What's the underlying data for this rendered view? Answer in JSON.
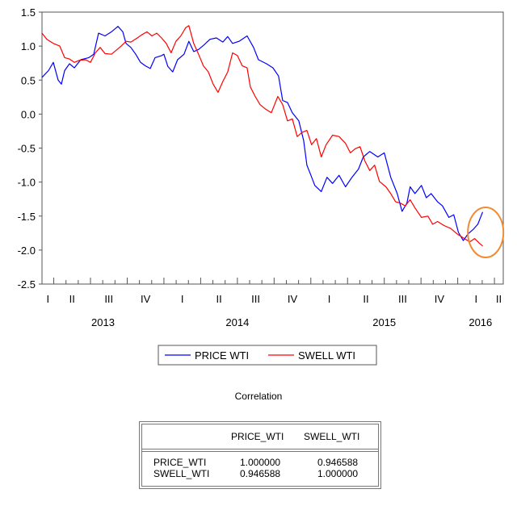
{
  "chart_data": {
    "type": "line",
    "title": "",
    "xlabel": "",
    "ylabel": "",
    "ylim": [
      -2.5,
      1.5
    ],
    "xlim": [
      2013.17,
      2016.31
    ],
    "yticks": [
      "1.5",
      "1.0",
      "0.5",
      "0.0",
      "-0.5",
      "-1.0",
      "-1.5",
      "-2.0",
      "-2.5"
    ],
    "ytick_values": [
      1.5,
      1.0,
      0.5,
      0.0,
      -0.5,
      -1.0,
      -1.5,
      -2.0,
      -2.5
    ],
    "quarter_labels": [
      "I",
      "II",
      "III",
      "IV"
    ],
    "year_labels": [
      "2013",
      "2014",
      "2015",
      "2016"
    ],
    "grid": false,
    "legend_placement": "bottom",
    "series": [
      {
        "name": "PRICE WTI",
        "color": "#0000ff",
        "points": [
          [
            2013.17,
            0.54
          ],
          [
            2013.214,
            0.64
          ],
          [
            2013.247,
            0.76
          ],
          [
            2013.28,
            0.5
          ],
          [
            2013.302,
            0.44
          ],
          [
            2013.324,
            0.64
          ],
          [
            2013.357,
            0.74
          ],
          [
            2013.39,
            0.68
          ],
          [
            2013.434,
            0.8
          ],
          [
            2013.489,
            0.83
          ],
          [
            2013.522,
            0.88
          ],
          [
            2013.555,
            1.19
          ],
          [
            2013.599,
            1.15
          ],
          [
            2013.643,
            1.21
          ],
          [
            2013.687,
            1.29
          ],
          [
            2013.72,
            1.21
          ],
          [
            2013.742,
            1.04
          ],
          [
            2013.775,
            0.98
          ],
          [
            2013.808,
            0.88
          ],
          [
            2013.841,
            0.76
          ],
          [
            2013.874,
            0.71
          ],
          [
            2013.907,
            0.67
          ],
          [
            2013.94,
            0.83
          ],
          [
            2013.984,
            0.86
          ],
          [
            2014.0,
            0.88
          ],
          [
            2014.027,
            0.7
          ],
          [
            2014.06,
            0.62
          ],
          [
            2014.093,
            0.8
          ],
          [
            2014.137,
            0.88
          ],
          [
            2014.17,
            1.07
          ],
          [
            2014.203,
            0.92
          ],
          [
            2014.236,
            0.95
          ],
          [
            2014.269,
            1.01
          ],
          [
            2014.313,
            1.1
          ],
          [
            2014.357,
            1.12
          ],
          [
            2014.401,
            1.06
          ],
          [
            2014.434,
            1.14
          ],
          [
            2014.467,
            1.04
          ],
          [
            2014.511,
            1.07
          ],
          [
            2014.566,
            1.15
          ],
          [
            2014.61,
            0.98
          ],
          [
            2014.643,
            0.8
          ],
          [
            2014.698,
            0.74
          ],
          [
            2014.742,
            0.68
          ],
          [
            2014.78,
            0.56
          ],
          [
            2014.808,
            0.2
          ],
          [
            2014.841,
            0.17
          ],
          [
            2014.874,
            0.02
          ],
          [
            2014.918,
            -0.1
          ],
          [
            2014.951,
            -0.39
          ],
          [
            2014.973,
            -0.75
          ],
          [
            2014.995,
            -0.87
          ],
          [
            2015.027,
            -1.05
          ],
          [
            2015.071,
            -1.14
          ],
          [
            2015.11,
            -0.93
          ],
          [
            2015.148,
            -1.02
          ],
          [
            2015.192,
            -0.9
          ],
          [
            2015.236,
            -1.07
          ],
          [
            2015.28,
            -0.93
          ],
          [
            2015.324,
            -0.81
          ],
          [
            2015.357,
            -0.63
          ],
          [
            2015.401,
            -0.55
          ],
          [
            2015.456,
            -0.63
          ],
          [
            2015.5,
            -0.57
          ],
          [
            2015.544,
            -0.93
          ],
          [
            2015.588,
            -1.17
          ],
          [
            2015.621,
            -1.43
          ],
          [
            2015.654,
            -1.31
          ],
          [
            2015.676,
            -1.07
          ],
          [
            2015.709,
            -1.17
          ],
          [
            2015.753,
            -1.05
          ],
          [
            2015.786,
            -1.23
          ],
          [
            2015.819,
            -1.17
          ],
          [
            2015.863,
            -1.29
          ],
          [
            2015.896,
            -1.35
          ],
          [
            2015.94,
            -1.52
          ],
          [
            2015.973,
            -1.48
          ],
          [
            2016.005,
            -1.74
          ],
          [
            2016.038,
            -1.86
          ],
          [
            2016.071,
            -1.76
          ],
          [
            2016.104,
            -1.7
          ],
          [
            2016.137,
            -1.62
          ],
          [
            2016.17,
            -1.44
          ]
        ]
      },
      {
        "name": "SWELL WTI",
        "color": "#ff0000",
        "points": [
          [
            2013.17,
            1.19
          ],
          [
            2013.203,
            1.1
          ],
          [
            2013.247,
            1.04
          ],
          [
            2013.291,
            1.0
          ],
          [
            2013.324,
            0.83
          ],
          [
            2013.357,
            0.81
          ],
          [
            2013.39,
            0.76
          ],
          [
            2013.423,
            0.79
          ],
          [
            2013.467,
            0.8
          ],
          [
            2013.5,
            0.76
          ],
          [
            2013.533,
            0.9
          ],
          [
            2013.566,
            0.98
          ],
          [
            2013.599,
            0.89
          ],
          [
            2013.643,
            0.88
          ],
          [
            2013.676,
            0.94
          ],
          [
            2013.709,
            1.0
          ],
          [
            2013.742,
            1.07
          ],
          [
            2013.775,
            1.06
          ],
          [
            2013.819,
            1.12
          ],
          [
            2013.852,
            1.17
          ],
          [
            2013.885,
            1.21
          ],
          [
            2013.918,
            1.15
          ],
          [
            2013.951,
            1.19
          ],
          [
            2013.984,
            1.12
          ],
          [
            2014.016,
            1.04
          ],
          [
            2014.049,
            0.9
          ],
          [
            2014.082,
            1.07
          ],
          [
            2014.115,
            1.15
          ],
          [
            2014.148,
            1.27
          ],
          [
            2014.17,
            1.3
          ],
          [
            2014.203,
            1.04
          ],
          [
            2014.236,
            0.88
          ],
          [
            2014.269,
            0.71
          ],
          [
            2014.302,
            0.62
          ],
          [
            2014.335,
            0.44
          ],
          [
            2014.368,
            0.32
          ],
          [
            2014.401,
            0.48
          ],
          [
            2014.434,
            0.62
          ],
          [
            2014.467,
            0.9
          ],
          [
            2014.5,
            0.86
          ],
          [
            2014.533,
            0.71
          ],
          [
            2014.566,
            0.68
          ],
          [
            2014.588,
            0.4
          ],
          [
            2014.621,
            0.26
          ],
          [
            2014.654,
            0.14
          ],
          [
            2014.687,
            0.08
          ],
          [
            2014.731,
            0.02
          ],
          [
            2014.775,
            0.26
          ],
          [
            2014.808,
            0.14
          ],
          [
            2014.841,
            -0.1
          ],
          [
            2014.874,
            -0.07
          ],
          [
            2014.907,
            -0.33
          ],
          [
            2014.94,
            -0.27
          ],
          [
            2014.973,
            -0.24
          ],
          [
            2015.005,
            -0.45
          ],
          [
            2015.038,
            -0.36
          ],
          [
            2015.071,
            -0.63
          ],
          [
            2015.104,
            -0.45
          ],
          [
            2015.148,
            -0.31
          ],
          [
            2015.192,
            -0.33
          ],
          [
            2015.236,
            -0.43
          ],
          [
            2015.269,
            -0.57
          ],
          [
            2015.302,
            -0.51
          ],
          [
            2015.335,
            -0.48
          ],
          [
            2015.368,
            -0.69
          ],
          [
            2015.401,
            -0.83
          ],
          [
            2015.434,
            -0.75
          ],
          [
            2015.467,
            -0.99
          ],
          [
            2015.511,
            -1.07
          ],
          [
            2015.544,
            -1.17
          ],
          [
            2015.577,
            -1.29
          ],
          [
            2015.61,
            -1.31
          ],
          [
            2015.643,
            -1.35
          ],
          [
            2015.676,
            -1.26
          ],
          [
            2015.709,
            -1.38
          ],
          [
            2015.753,
            -1.52
          ],
          [
            2015.797,
            -1.5
          ],
          [
            2015.83,
            -1.62
          ],
          [
            2015.863,
            -1.58
          ],
          [
            2015.907,
            -1.64
          ],
          [
            2015.951,
            -1.68
          ],
          [
            2015.995,
            -1.76
          ],
          [
            2016.038,
            -1.82
          ],
          [
            2016.082,
            -1.88
          ],
          [
            2016.115,
            -1.83
          ],
          [
            2016.148,
            -1.9
          ],
          [
            2016.17,
            -1.94
          ]
        ]
      }
    ],
    "annotation": {
      "shape": "ellipse",
      "color": "#f28b30",
      "center": [
        2016.19,
        -1.74
      ]
    }
  },
  "legend": {
    "items": [
      {
        "label": "PRICE WTI",
        "color": "#0000ff"
      },
      {
        "label": "SWELL WTI",
        "color": "#ff0000"
      }
    ]
  },
  "correlation": {
    "title": "Correlation",
    "columns": [
      "PRICE_WTI",
      "SWELL_WTI"
    ],
    "rows": [
      {
        "label": "PRICE_WTI",
        "values": [
          "1.000000",
          "0.946588"
        ]
      },
      {
        "label": "SWELL_WTI",
        "values": [
          "0.946588",
          "1.000000"
        ]
      }
    ]
  }
}
